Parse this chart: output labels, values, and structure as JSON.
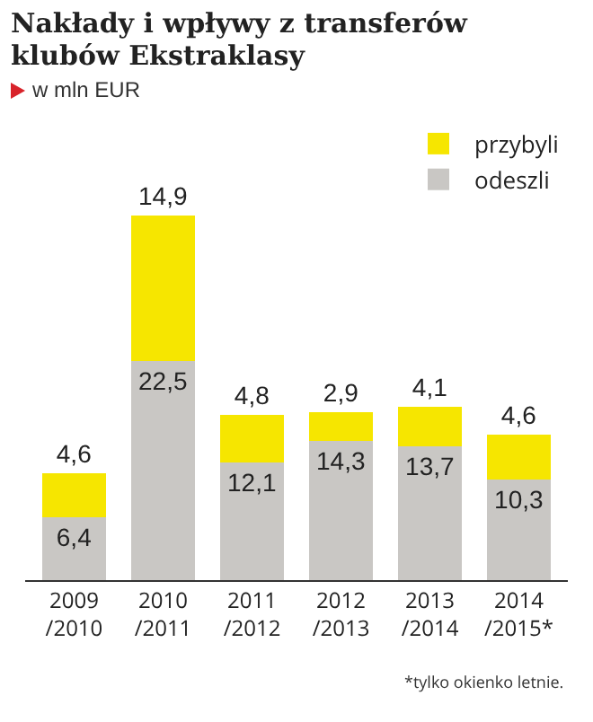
{
  "chart_data": {
    "type": "bar",
    "stacked": true,
    "title": "Nakłady i wpływy z transferów klubów Ekstraklasy",
    "subtitle": "w mln EUR",
    "categories": [
      "2009\n/2010",
      "2010\n/2011",
      "2011\n/2012",
      "2012\n/2013",
      "2013\n/2014",
      "2014\n/2015*"
    ],
    "series": [
      {
        "name": "odeszli",
        "color": "#c9c7c4",
        "values": [
          6.4,
          22.5,
          12.1,
          14.3,
          13.7,
          10.3
        ],
        "value_labels": [
          "6,4",
          "22,5",
          "12,1",
          "14,3",
          "13,7",
          "10,3"
        ]
      },
      {
        "name": "przybyli",
        "color": "#f6e600",
        "values": [
          4.6,
          14.9,
          4.8,
          2.9,
          4.1,
          4.6
        ],
        "value_labels": [
          "4,6",
          "14,9",
          "4,8",
          "2,9",
          "4,1",
          "4,6"
        ]
      }
    ],
    "legend": "top right",
    "grid": false,
    "annotations": [
      "*tylko okienko letnie."
    ]
  }
}
